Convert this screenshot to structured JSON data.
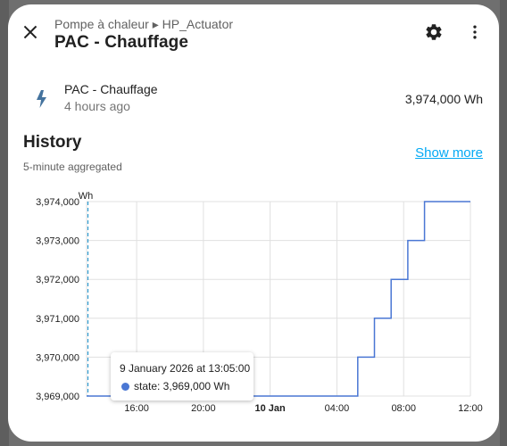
{
  "header": {
    "breadcrumb": "Pompe à chaleur ▸ HP_Actuator",
    "title": "PAC - Chauffage",
    "close_icon": "close-icon",
    "settings_icon": "gear-icon",
    "more_icon": "more-vertical-icon"
  },
  "state": {
    "icon": "lightning-bolt-icon",
    "name": "PAC - Chauffage",
    "last_changed": "4 hours ago",
    "value": "3,974,000 Wh"
  },
  "history": {
    "title": "History",
    "subtitle": "5-minute aggregated",
    "show_more_label": "Show more"
  },
  "colors": {
    "accent": "#03a9f4",
    "series": "#4a77d4",
    "cursor": "#2e9ad0"
  },
  "chart_data": {
    "type": "line",
    "ylabel": "Wh",
    "y_ticks": [
      "3,969,000",
      "3,970,000",
      "3,971,000",
      "3,972,000",
      "3,973,000",
      "3,974,000"
    ],
    "y_values": [
      3969000,
      3970000,
      3971000,
      3972000,
      3973000,
      3974000
    ],
    "ylim": [
      3969000,
      3974000
    ],
    "x_ticks": [
      "16:00",
      "20:00",
      "10 Jan",
      "04:00",
      "08:00",
      "12:00"
    ],
    "x_ticks_bold": [
      false,
      false,
      true,
      false,
      false,
      false
    ],
    "grid": true,
    "step": true,
    "series": [
      {
        "x": [
          13.0,
          16.0,
          20.0,
          24.0,
          28.0,
          29.25,
          30.25,
          31.25,
          32.25,
          33.25,
          36.0
        ],
        "y": [
          3969000,
          3969000,
          3969000,
          3969000,
          3969000,
          3970000,
          3971000,
          3972000,
          3973000,
          3974000,
          3974000
        ]
      }
    ],
    "x_ticks_hours": [
      16,
      20,
      24,
      28,
      32,
      36
    ],
    "cursor_hour": 13.08,
    "tooltip": {
      "date": "9 January 2026 at 13:05:00",
      "state": "state: 3,969,000 Wh"
    }
  }
}
